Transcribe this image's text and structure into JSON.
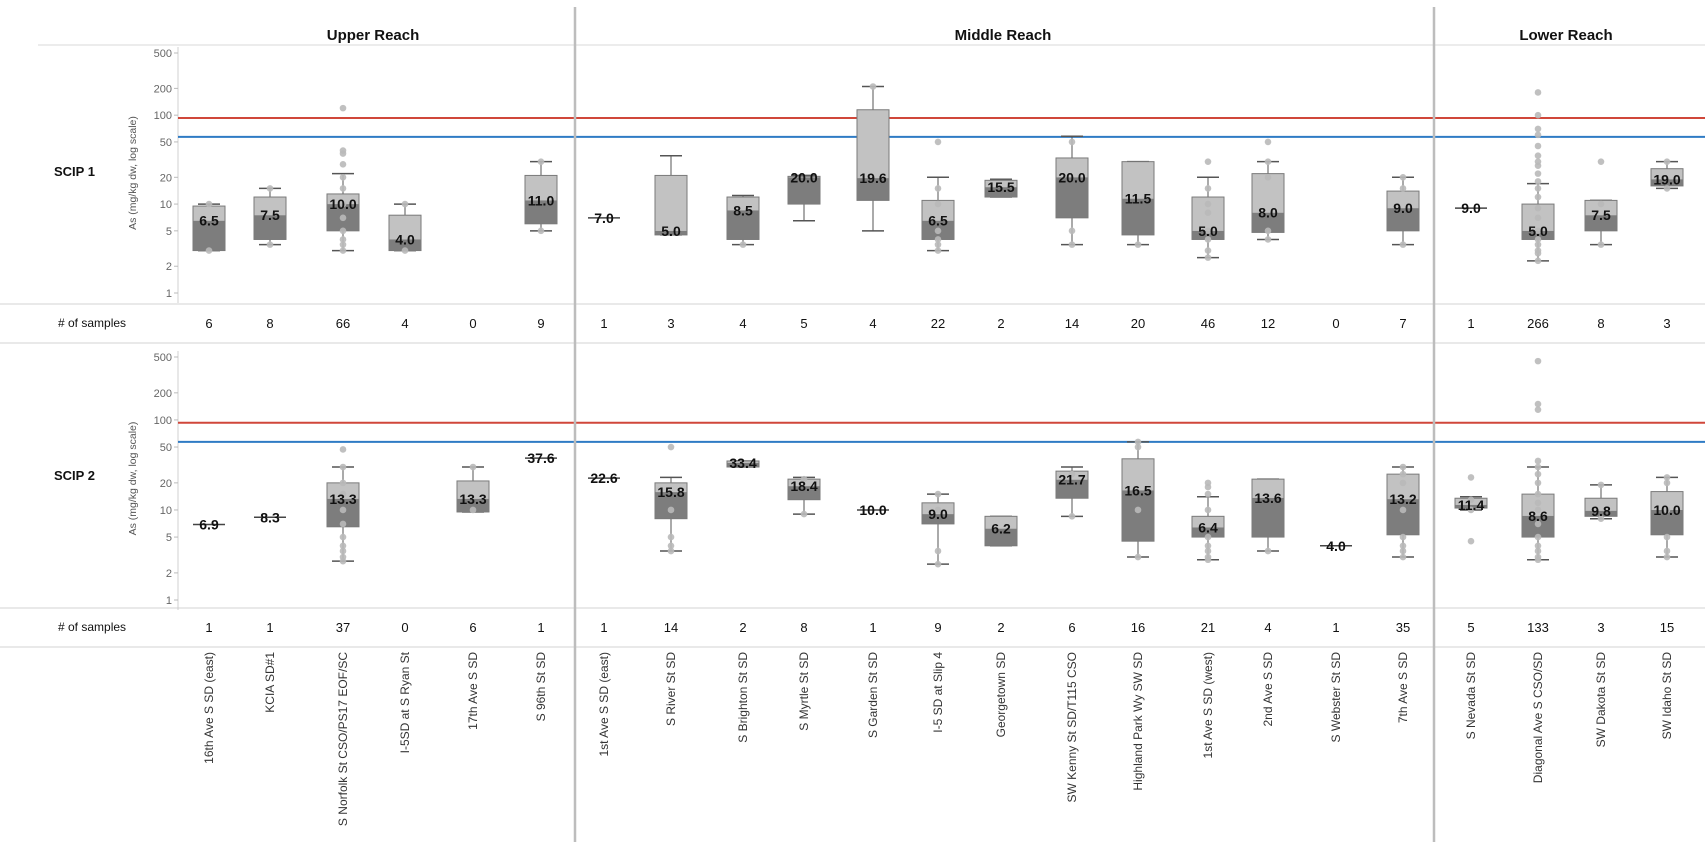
{
  "chart_data": {
    "type": "boxplot",
    "y_axis": {
      "title": "As (mg/kg dw, log scale)",
      "scale": "log",
      "range": [
        1,
        500
      ],
      "ticks": [
        1,
        2,
        5,
        10,
        20,
        50,
        100,
        200,
        500
      ]
    },
    "reference_lines": [
      {
        "value": 93,
        "color": "#d0473a"
      },
      {
        "value": 57,
        "color": "#2f7bc4"
      }
    ],
    "colors": {
      "box_upper": "#c2c2c2",
      "box_lower": "#7d7d7d",
      "outlier": "#b9b9b9",
      "divider": "#bdbdbd"
    },
    "samples_label": "# of samples",
    "reaches": [
      {
        "name": "Upper Reach",
        "start": 0,
        "end": 5
      },
      {
        "name": "Middle Reach",
        "start": 6,
        "end": 18
      },
      {
        "name": "Lower Reach",
        "start": 19,
        "end": 22
      }
    ],
    "sites": [
      "16th Ave S SD (east)",
      "KCIA SD#1",
      "S Norfolk St CSO/PS17 EOF/SC",
      "I-5SD at S Ryan St",
      "17th Ave S SD",
      "S 96th St SD",
      "1st Ave S SD (east)",
      "S River St SD",
      "S Brighton St SD",
      "S Myrtle St SD",
      "S Garden St SD",
      "I-5 SD at Slip 4",
      "Georgetown SD",
      "SW Kenny St SD/T115 CSO",
      "Highland Park Wy SW SD",
      "1st Ave S SD (west)",
      "2nd Ave S SD",
      "S Webster St SD",
      "7th Ave S SD",
      "S Nevada St SD",
      "Diagonal Ave S CSO/SD",
      "SW Dakota St SD",
      "SW Idaho St SD"
    ],
    "panels": [
      {
        "name": "SCIP 1",
        "samples": [
          "6",
          "8",
          "66",
          "4",
          "0",
          "9",
          "1",
          "3",
          "4",
          "5",
          "4",
          "22",
          "2",
          "14",
          "20",
          "46",
          "12",
          "0",
          "7",
          "1",
          "266",
          "8",
          "3"
        ],
        "data": [
          {
            "site": 0,
            "median": 6.5,
            "label": "6.5",
            "q1": 3,
            "q3": 9.5,
            "wlo": 3,
            "whi": 10,
            "outliers": [
              3,
              10
            ]
          },
          {
            "site": 1,
            "median": 7.5,
            "label": "7.5",
            "q1": 4,
            "q3": 12,
            "wlo": 3.5,
            "whi": 15,
            "outliers": [
              3.5,
              15
            ]
          },
          {
            "site": 2,
            "median": 10,
            "label": "10.0",
            "q1": 5,
            "q3": 13,
            "wlo": 3,
            "whi": 22,
            "outliers": [
              3,
              3.5,
              4,
              5,
              7,
              10,
              15,
              20,
              28,
              37,
              40,
              120
            ]
          },
          {
            "site": 3,
            "median": 4,
            "label": "4.0",
            "q1": 3,
            "q3": 7.5,
            "wlo": 3,
            "whi": 10,
            "outliers": [
              3,
              10
            ]
          },
          {
            "site": 5,
            "median": 11,
            "label": "11.0",
            "q1": 6,
            "q3": 21,
            "wlo": 5,
            "whi": 30,
            "outliers": [
              5,
              30
            ]
          },
          {
            "site": 6,
            "median": 7,
            "label": "7.0",
            "single": true
          },
          {
            "site": 7,
            "median": 5,
            "label": "5.0",
            "q1": 4.5,
            "q3": 21,
            "wlo": 4.5,
            "whi": 35,
            "outliers": []
          },
          {
            "site": 8,
            "median": 8.5,
            "label": "8.5",
            "q1": 4,
            "q3": 12,
            "wlo": 3.5,
            "whi": 12.5,
            "outliers": [
              3.5
            ]
          },
          {
            "site": 9,
            "median": 20,
            "label": "20.0",
            "q1": 10,
            "q3": 20.5,
            "wlo": 6.5,
            "whi": 21,
            "outliers": []
          },
          {
            "site": 10,
            "median": 19.6,
            "label": "19.6",
            "q1": 11,
            "q3": 115,
            "wlo": 5,
            "whi": 210,
            "outliers": [
              210
            ]
          },
          {
            "site": 11,
            "median": 6.5,
            "label": "6.5",
            "q1": 4,
            "q3": 11,
            "wlo": 3,
            "whi": 20,
            "outliers": [
              3,
              3.5,
              4,
              5,
              10,
              15,
              50
            ]
          },
          {
            "site": 12,
            "median": 15.5,
            "label": "15.5",
            "q1": 12,
            "q3": 18.5,
            "wlo": 12,
            "whi": 19,
            "outliers": []
          },
          {
            "site": 13,
            "median": 20,
            "label": "20.0",
            "q1": 7,
            "q3": 33,
            "wlo": 3.5,
            "whi": 58,
            "outliers": [
              3.5,
              5,
              50
            ]
          },
          {
            "site": 14,
            "median": 11.5,
            "label": "11.5",
            "q1": 4.5,
            "q3": 30,
            "wlo": 3.5,
            "whi": 30,
            "outliers": [
              3.5
            ]
          },
          {
            "site": 15,
            "median": 5,
            "label": "5.0",
            "q1": 4,
            "q3": 12,
            "wlo": 2.5,
            "whi": 20,
            "outliers": [
              2.5,
              3,
              4,
              5,
              8,
              10,
              15,
              30
            ]
          },
          {
            "site": 16,
            "median": 8,
            "label": "8.0",
            "q1": 4.8,
            "q3": 22,
            "wlo": 4,
            "whi": 30,
            "outliers": [
              4,
              5,
              20,
              30,
              50
            ]
          },
          {
            "site": 18,
            "median": 9,
            "label": "9.0",
            "q1": 5,
            "q3": 14,
            "wlo": 3.5,
            "whi": 20,
            "outliers": [
              3.5,
              15,
              20
            ]
          },
          {
            "site": 19,
            "median": 9,
            "label": "9.0",
            "single": true
          },
          {
            "site": 20,
            "median": 5,
            "label": "5.0",
            "q1": 4,
            "q3": 10,
            "wlo": 2.3,
            "whi": 17,
            "outliers": [
              2.3,
              2.8,
              3,
              3.5,
              4,
              5,
              7,
              9,
              12,
              15,
              18,
              22,
              27,
              30,
              35,
              45,
              60,
              70,
              100,
              180
            ]
          },
          {
            "site": 21,
            "median": 7.5,
            "label": "7.5",
            "q1": 5,
            "q3": 11,
            "wlo": 3.5,
            "whi": 11,
            "outliers": [
              3.5,
              10,
              30
            ]
          },
          {
            "site": 22,
            "median": 19,
            "label": "19.0",
            "q1": 16,
            "q3": 25,
            "wlo": 15,
            "whi": 30,
            "outliers": [
              15,
              30
            ]
          }
        ]
      },
      {
        "name": "SCIP 2",
        "samples": [
          "1",
          "1",
          "37",
          "0",
          "6",
          "1",
          "1",
          "14",
          "2",
          "8",
          "1",
          "9",
          "2",
          "6",
          "16",
          "21",
          "4",
          "1",
          "35",
          "5",
          "133",
          "3",
          "15"
        ],
        "data": [
          {
            "site": 0,
            "median": 6.9,
            "label": "6.9",
            "single": true
          },
          {
            "site": 1,
            "median": 8.3,
            "label": "8.3",
            "single": true
          },
          {
            "site": 2,
            "median": 13.3,
            "label": "13.3",
            "q1": 6.5,
            "q3": 20,
            "wlo": 2.7,
            "whi": 30,
            "outliers": [
              2.7,
              3,
              3.5,
              4,
              5,
              7,
              10,
              15,
              20,
              30,
              47
            ]
          },
          {
            "site": 4,
            "median": 13.3,
            "label": "13.3",
            "q1": 9.5,
            "q3": 21,
            "wlo": 9.5,
            "whi": 30,
            "outliers": [
              10,
              30
            ]
          },
          {
            "site": 5,
            "median": 37.6,
            "label": "37.6",
            "single": true
          },
          {
            "site": 6,
            "median": 22.6,
            "label": "22.6",
            "single": true
          },
          {
            "site": 7,
            "median": 15.8,
            "label": "15.8",
            "q1": 8,
            "q3": 20,
            "wlo": 3.5,
            "whi": 23,
            "outliers": [
              3.5,
              4,
              5,
              10,
              50
            ]
          },
          {
            "site": 8,
            "median": 33.4,
            "label": "33.4",
            "q1": 30,
            "q3": 35,
            "wlo": 30,
            "whi": 35,
            "outliers": []
          },
          {
            "site": 9,
            "median": 18.4,
            "label": "18.4",
            "q1": 13,
            "q3": 22,
            "wlo": 9,
            "whi": 23,
            "outliers": [
              9,
              22
            ]
          },
          {
            "site": 10,
            "median": 10,
            "label": "10.0",
            "single": true
          },
          {
            "site": 11,
            "median": 9,
            "label": "9.0",
            "q1": 7,
            "q3": 12,
            "wlo": 2.5,
            "whi": 15,
            "outliers": [
              2.5,
              3.5,
              10,
              15
            ]
          },
          {
            "site": 12,
            "median": 6.2,
            "label": "6.2",
            "q1": 4,
            "q3": 8.5,
            "wlo": 4,
            "whi": 8.5,
            "outliers": []
          },
          {
            "site": 13,
            "median": 21.7,
            "label": "21.7",
            "q1": 13.5,
            "q3": 27,
            "wlo": 8.5,
            "whi": 30,
            "outliers": [
              8.5,
              25
            ]
          },
          {
            "site": 14,
            "median": 16.5,
            "label": "16.5",
            "q1": 4.5,
            "q3": 37,
            "wlo": 3,
            "whi": 57,
            "outliers": [
              3,
              10,
              50,
              57
            ]
          },
          {
            "site": 15,
            "median": 6.4,
            "label": "6.4",
            "q1": 5,
            "q3": 8.5,
            "wlo": 2.8,
            "whi": 14,
            "outliers": [
              2.8,
              3,
              3.5,
              4,
              5,
              10,
              15,
              18,
              20
            ]
          },
          {
            "site": 16,
            "median": 13.6,
            "label": "13.6",
            "q1": 5,
            "q3": 22,
            "wlo": 3.5,
            "whi": 22,
            "outliers": [
              3.5
            ]
          },
          {
            "site": 17,
            "median": 4,
            "label": "4.0",
            "single": true
          },
          {
            "site": 18,
            "median": 13.2,
            "label": "13.2",
            "q1": 5.3,
            "q3": 25,
            "wlo": 3,
            "whi": 30,
            "outliers": [
              3,
              3.5,
              4,
              5,
              10,
              20,
              25,
              30
            ]
          },
          {
            "site": 19,
            "median": 11.4,
            "label": "11.4",
            "q1": 10.5,
            "q3": 13.5,
            "wlo": 10,
            "whi": 14,
            "outliers": [
              4.5,
              10,
              13,
              23
            ]
          },
          {
            "site": 20,
            "median": 8.6,
            "label": "8.6",
            "q1": 5,
            "q3": 15,
            "wlo": 2.8,
            "whi": 30,
            "outliers": [
              2.8,
              3,
              3.5,
              4,
              5,
              7,
              10,
              12,
              15,
              20,
              25,
              30,
              35,
              130,
              150,
              450
            ]
          },
          {
            "site": 21,
            "median": 9.8,
            "label": "9.8",
            "q1": 8.5,
            "q3": 13.5,
            "wlo": 8,
            "whi": 19,
            "outliers": [
              8,
              19
            ]
          },
          {
            "site": 22,
            "median": 10,
            "label": "10.0",
            "q1": 5.3,
            "q3": 16,
            "wlo": 3,
            "whi": 23,
            "outliers": [
              3,
              3.5,
              5,
              10,
              20,
              23
            ]
          }
        ]
      }
    ]
  }
}
